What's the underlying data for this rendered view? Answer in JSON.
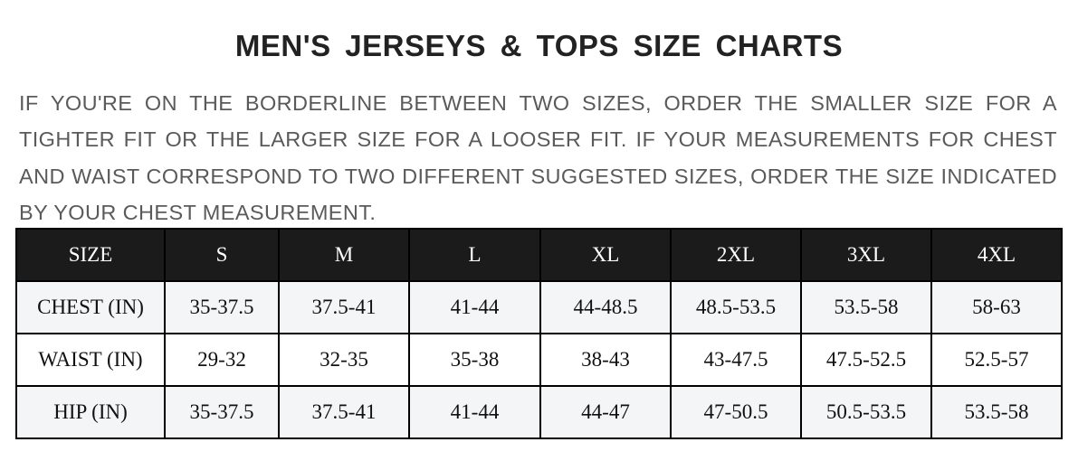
{
  "title": "MEN'S JERSEYS & TOPS SIZE CHARTS",
  "note": "IF YOU'RE ON THE BORDERLINE BETWEEN TWO SIZES, ORDER THE SMALLER SIZE FOR A TIGHTER FIT OR THE LARGER SIZE FOR A LOOSER FIT. IF YOUR MEASUREMENTS FOR CHEST AND WAIST CORRESPOND TO TWO DIFFERENT SUGGESTED SIZES, ORDER THE SIZE INDICATED BY YOUR CHEST MEASUREMENT.",
  "table": {
    "headers": [
      "SIZE",
      "S",
      "M",
      "L",
      "XL",
      "2XL",
      "3XL",
      "4XL"
    ],
    "rows": [
      [
        "CHEST (IN)",
        "35-37.5",
        "37.5-41",
        "41-44",
        "44-48.5",
        "48.5-53.5",
        "53.5-58",
        "58-63"
      ],
      [
        "WAIST (IN)",
        "29-32",
        "32-35",
        "35-38",
        "38-43",
        "43-47.5",
        "47.5-52.5",
        "52.5-57"
      ],
      [
        "HIP (IN)",
        "35-37.5",
        "37.5-41",
        "41-44",
        "44-47",
        "47-50.5",
        "50.5-53.5",
        "53.5-58"
      ]
    ]
  },
  "colors": {
    "header_bg": "#1b1b1b",
    "row_alt": "#f4f5f7",
    "text_gray": "#5a5a5a"
  }
}
